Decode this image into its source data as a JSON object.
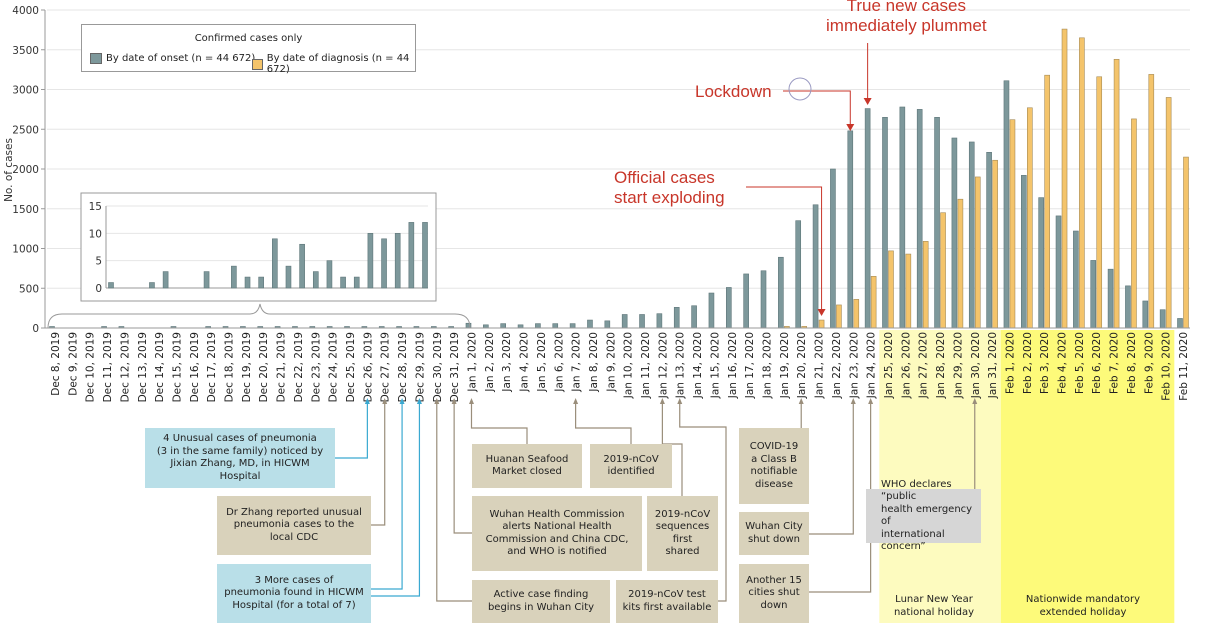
{
  "chart_data": {
    "type": "bar",
    "title": "",
    "ylabel": "No. of cases",
    "xlabel": "",
    "ylim": [
      0,
      4000
    ],
    "yticks": [
      0,
      500,
      1000,
      1500,
      2000,
      2500,
      3000,
      3500,
      4000
    ],
    "grid": true,
    "legend": {
      "title": "Confirmed cases only",
      "placement": "top-left",
      "entries": [
        "By date of onset (n = 44 672)",
        "By date of diagnosis (n = 44 672)"
      ]
    },
    "colors": {
      "onset": "#7d989b",
      "diagnosis": "#f4c46b",
      "annotation": "#c8362a"
    },
    "categories": [
      "Dec 8, 2019",
      "Dec 9, 2019",
      "Dec 10, 2019",
      "Dec 11, 2019",
      "Dec 12, 2019",
      "Dec 13, 2019",
      "Dec 14, 2019",
      "Dec 15, 2019",
      "Dec 16, 2019",
      "Dec 17, 2019",
      "Dec 18, 2019",
      "Dec 19, 2019",
      "Dec 20, 2019",
      "Dec 21, 2019",
      "Dec 22, 2019",
      "Dec 23, 2019",
      "Dec 24, 2019",
      "Dec 25, 2019",
      "Dec 26, 2019",
      "Dec 27, 2019",
      "Dec 28, 2019",
      "Dec 29, 2019",
      "Dec 30, 2019",
      "Dec 31, 2019",
      "Jan 1, 2020",
      "Jan 2, 2020",
      "Jan 3, 2020",
      "Jan 4, 2020",
      "Jan 5, 2020",
      "Jan 6, 2020",
      "Jan 7, 2020",
      "Jan 8, 2020",
      "Jan 9, 2020",
      "Jan 10, 2020",
      "Jan 11, 2020",
      "Jan 12, 2020",
      "Jan 13, 2020",
      "Jan 14, 2020",
      "Jan 15, 2020",
      "Jan 16, 2020",
      "Jan 17, 2020",
      "Jan 18, 2020",
      "Jan 19, 2020",
      "Jan 20, 2020",
      "Jan 21, 2020",
      "Jan 22, 2020",
      "Jan 23, 2020",
      "Jan 24, 2020",
      "Jan 25, 2020",
      "Jan 26, 2020",
      "Jan 27, 2020",
      "Jan 28, 2020",
      "Jan 29, 2020",
      "Jan 30, 2020",
      "Jan 31, 2020",
      "Feb 1, 2020",
      "Feb 2, 2020",
      "Feb 3, 2020",
      "Feb 4, 2020",
      "Feb 5, 2020",
      "Feb 6, 2020",
      "Feb 7, 2020",
      "Feb 8, 2020",
      "Feb 9, 2020",
      "Feb 10, 2020",
      "Feb 11, 2020"
    ],
    "series": [
      {
        "name": "By date of onset",
        "values": [
          1,
          0,
          0,
          1,
          3,
          0,
          0,
          3,
          0,
          4,
          2,
          2,
          9,
          4,
          8,
          3,
          5,
          2,
          2,
          10,
          9,
          10,
          12,
          12,
          60,
          40,
          55,
          40,
          55,
          55,
          55,
          100,
          90,
          170,
          170,
          180,
          260,
          280,
          440,
          510,
          680,
          720,
          890,
          1350,
          1550,
          2000,
          2480,
          2760,
          2650,
          2780,
          2750,
          2650,
          2390,
          2340,
          2210,
          3110,
          1920,
          1640,
          1410,
          1220,
          850,
          740,
          530,
          340,
          230,
          120
        ]
      },
      {
        "name": "By date of diagnosis",
        "values": [
          0,
          0,
          0,
          0,
          0,
          0,
          0,
          0,
          0,
          0,
          0,
          0,
          0,
          0,
          0,
          0,
          0,
          0,
          0,
          0,
          0,
          0,
          0,
          0,
          0,
          0,
          0,
          0,
          0,
          0,
          0,
          0,
          0,
          0,
          0,
          0,
          0,
          0,
          0,
          0,
          0,
          0,
          20,
          20,
          100,
          290,
          360,
          650,
          970,
          930,
          1090,
          1450,
          1620,
          1900,
          2110,
          2620,
          2770,
          3180,
          3760,
          3650,
          3160,
          3380,
          2630,
          3190,
          2900,
          2150
        ]
      }
    ],
    "inset": {
      "range": [
        "Dec 8, 2019",
        "Dec 31, 2019"
      ],
      "ylim": [
        0,
        15
      ],
      "yticks": [
        0,
        5,
        10,
        15
      ]
    },
    "annotations": [
      {
        "id": "official",
        "text": "Official cases\nstart exploding",
        "target": "Jan 21, 2020"
      },
      {
        "id": "lockdown",
        "text": "Lockdown",
        "target": "Jan 23, 2020"
      },
      {
        "id": "plummet",
        "text": "True new cases\nimmediately plummet",
        "target": "Jan 24, 2020"
      }
    ],
    "shaded_periods": [
      {
        "label": "Lunar New Year\nnational holiday",
        "start": "Jan 25, 2020",
        "end": "Jan 31, 2020",
        "color": "#fdfbbf"
      },
      {
        "label": "Nationwide mandatory\nextended holiday",
        "start": "Feb 1, 2020",
        "end": "Feb 10, 2020",
        "color": "#fdfa7a"
      }
    ],
    "events": [
      {
        "text": "4 Unusual cases of pneumonia\n(3 in the same family) noticed by\nJixian Zhang, MD, in HICWM Hospital",
        "date": "Dec 26, 2019",
        "style": "blue"
      },
      {
        "text": "Dr Zhang reported unusual\npneumonia cases to the\nlocal CDC",
        "date": "Dec 27, 2019",
        "style": "tan"
      },
      {
        "text": "3 More cases of\npneumonia found in HICWM\nHospital (for a total of 7)",
        "date": "Dec 28-29, 2019",
        "style": "blue"
      },
      {
        "text": "Huanan Seafood\nMarket closed",
        "date": "Jan 1, 2020",
        "style": "tan"
      },
      {
        "text": "2019-nCoV\nidentified",
        "date": "Jan 7, 2020",
        "style": "tan"
      },
      {
        "text": "Wuhan Health Commission\nalerts National Health\nCommission and China CDC,\nand WHO is notified",
        "date": "Dec 31, 2019",
        "style": "tan"
      },
      {
        "text": "2019-nCoV\nsequences\nfirst\nshared",
        "date": "Jan 12, 2020",
        "style": "tan"
      },
      {
        "text": "Active case finding\nbegins in Wuhan City",
        "date": "Dec 30, 2019",
        "style": "tan"
      },
      {
        "text": "2019-nCoV test\nkits first available",
        "date": "Jan 13, 2020",
        "style": "tan"
      },
      {
        "text": "COVID-19\na Class B\nnotifiable\ndisease",
        "date": "Jan 20, 2020",
        "style": "tan"
      },
      {
        "text": "Wuhan City\nshut down",
        "date": "Jan 23, 2020",
        "style": "tan"
      },
      {
        "text": "Another 15\ncities shut\ndown",
        "date": "Jan 24, 2020",
        "style": "tan"
      },
      {
        "text": "WHO declares “public\nhealth emergency of\ninternational concern”",
        "date": "Jan 30, 2020",
        "style": "grey"
      }
    ]
  }
}
